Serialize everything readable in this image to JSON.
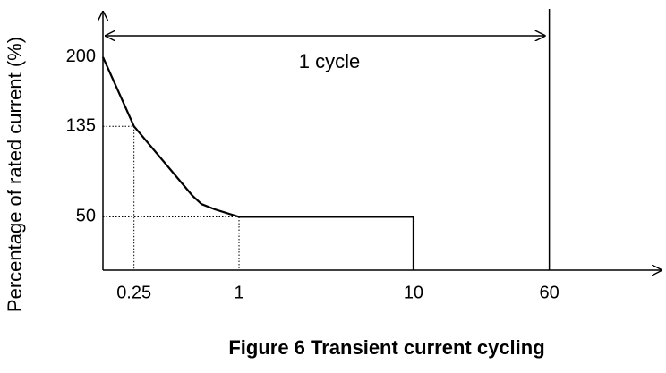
{
  "chart_data": {
    "type": "line",
    "title": "Figure 6  Transient current cycling",
    "y_label": "Percentage of rated current (%)",
    "annotation": "1 cycle",
    "x": [
      0.166,
      0.25,
      0.54,
      0.61,
      0.73,
      1,
      10,
      10
    ],
    "series": [
      {
        "color": "#000000",
        "values": [
          200,
          135,
          70,
          62,
          57,
          50,
          50,
          0
        ]
      }
    ],
    "xscale": "log",
    "xlim": [
      0.166,
      267
    ],
    "xticks": [
      0.25,
      1,
      10,
      60
    ],
    "ylim": [
      0,
      220
    ],
    "yticks": [
      50,
      135,
      200
    ]
  }
}
